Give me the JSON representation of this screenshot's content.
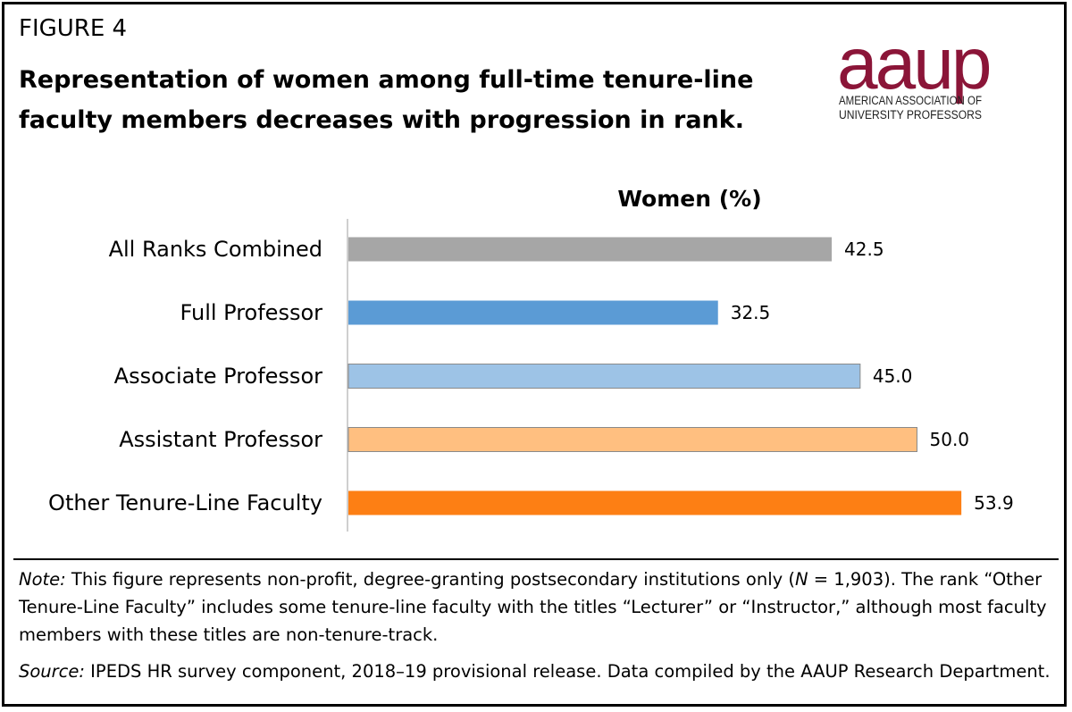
{
  "figure_label": "FIGURE 4",
  "title_line1": "Representation of women among full-time tenure-line",
  "title_line2": "faculty members decreases with progression in rank.",
  "logo": {
    "wordmark": "aaup",
    "line1": "AMERICAN ASSOCIATION OF",
    "line2": "UNIVERSITY PROFESSORS",
    "color": "#8b1538"
  },
  "chart_data": {
    "type": "bar",
    "orientation": "horizontal",
    "title": "Women (%)",
    "categories": [
      "All Ranks Combined",
      "Full Professor",
      "Associate Professor",
      "Assistant Professor",
      "Other Tenure-Line Faculty"
    ],
    "values": [
      42.5,
      32.5,
      45.0,
      50.0,
      53.9
    ],
    "value_labels": [
      "42.5",
      "32.5",
      "45.0",
      "50.0",
      "53.9"
    ],
    "colors": [
      "#a6a6a6",
      "#5b9bd5",
      "#9dc3e6",
      "#ffbf80",
      "#fd7f14"
    ],
    "xlim": [
      0,
      60
    ],
    "grid": false,
    "legend": "none"
  },
  "note": {
    "label": "Note:",
    "text_a": " This figure represents non-profit, degree-granting postsecondary institutions only (",
    "n_symbol": "N",
    "text_b": " = 1,903). The rank “Other Tenure-Line Faculty” includes some tenure-line faculty with the titles “Lecturer” or “Instructor,” although most faculty members with these titles are non-tenure-track."
  },
  "source": {
    "label": "Source:",
    "text": " IPEDS HR survey component, 2018–19 provisional release. Data compiled by the AAUP Research Department."
  }
}
